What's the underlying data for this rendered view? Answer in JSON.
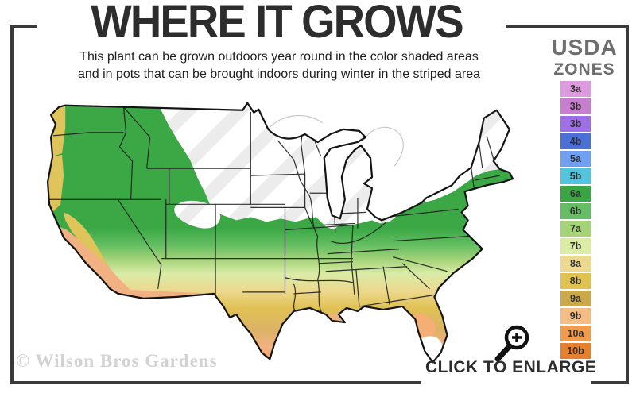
{
  "header": {
    "title": "WHERE IT GROWS",
    "subtitle_line1": "This plant can be grown outdoors year round in the color shaded areas",
    "subtitle_line2": "and in pots that can be brought indoors during winter in the striped area"
  },
  "legend": {
    "title_line1": "USDA",
    "title_line2": "ZONES",
    "zones": [
      {
        "label": "3a",
        "color": "#DC9ADF"
      },
      {
        "label": "3b",
        "color": "#C77ECF"
      },
      {
        "label": "3b",
        "color": "#9E6FE6"
      },
      {
        "label": "4b",
        "color": "#4A6FD6"
      },
      {
        "label": "5a",
        "color": "#6FA0F2"
      },
      {
        "label": "5b",
        "color": "#52C4DE"
      },
      {
        "label": "6a",
        "color": "#39A643"
      },
      {
        "label": "6b",
        "color": "#65BE63"
      },
      {
        "label": "7a",
        "color": "#A4D378"
      },
      {
        "label": "7b",
        "color": "#DAECA5"
      },
      {
        "label": "8a",
        "color": "#EDD88F"
      },
      {
        "label": "8b",
        "color": "#E0C251"
      },
      {
        "label": "9a",
        "color": "#CBA94A"
      },
      {
        "label": "9b",
        "color": "#F5BD84"
      },
      {
        "label": "10a",
        "color": "#F09C4F"
      },
      {
        "label": "10b",
        "color": "#E5812E"
      }
    ]
  },
  "map": {
    "description": "Continental United States USDA hardiness zone map; color shaded growing area in south and west, striped white area across the northern states",
    "band_colors_north_to_south": [
      "#3BA845",
      "#66BE62",
      "#A5D37A",
      "#DAECA6",
      "#EDD88F",
      "#E0C255",
      "#F2B183",
      "#EE9C55"
    ],
    "striped_area_colors": [
      "#FFFFFF",
      "#ECECEC"
    ],
    "state_line_color": "#1c1c1c"
  },
  "footer": {
    "watermark": "© Wilson Bros Gardens",
    "enlarge_label": "CLICK TO ENLARGE"
  },
  "colors": {
    "frame": "#3a3a3a",
    "title_text": "#2d2d2d",
    "legend_title_text": "#6e6e6e",
    "watermark_text": "#d2d2d2"
  }
}
